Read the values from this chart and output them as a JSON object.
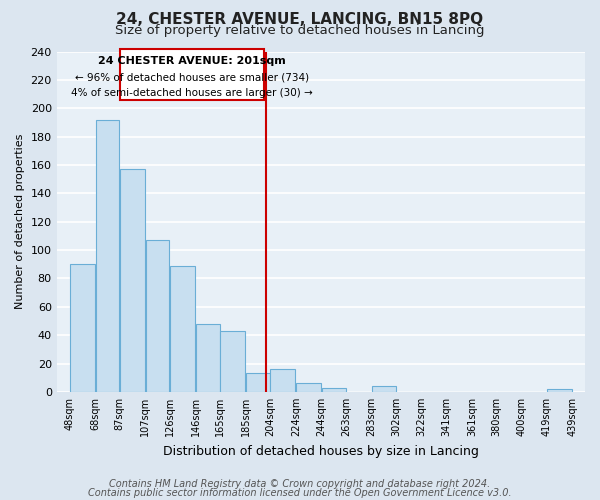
{
  "title": "24, CHESTER AVENUE, LANCING, BN15 8PQ",
  "subtitle": "Size of property relative to detached houses in Lancing",
  "xlabel": "Distribution of detached houses by size in Lancing",
  "ylabel": "Number of detached properties",
  "bar_left_edges": [
    48,
    68,
    87,
    107,
    126,
    146,
    165,
    185,
    204,
    224,
    244,
    263,
    283,
    302,
    322,
    341,
    361,
    380,
    400,
    419
  ],
  "bar_heights": [
    90,
    192,
    157,
    107,
    89,
    48,
    43,
    13,
    16,
    6,
    3,
    0,
    4,
    0,
    0,
    0,
    0,
    0,
    0,
    2
  ],
  "bar_widths": [
    20,
    19,
    20,
    19,
    20,
    19,
    20,
    19,
    20,
    20,
    19,
    20,
    19,
    20,
    19,
    20,
    19,
    20,
    19,
    20
  ],
  "bar_color": "#c8dff0",
  "bar_edgecolor": "#6aaed6",
  "vline_x": 201,
  "vline_color": "#cc0000",
  "ylim": [
    0,
    240
  ],
  "yticks": [
    0,
    20,
    40,
    60,
    80,
    100,
    120,
    140,
    160,
    180,
    200,
    220,
    240
  ],
  "xtick_labels": [
    "48sqm",
    "68sqm",
    "87sqm",
    "107sqm",
    "126sqm",
    "146sqm",
    "165sqm",
    "185sqm",
    "204sqm",
    "224sqm",
    "244sqm",
    "263sqm",
    "283sqm",
    "302sqm",
    "322sqm",
    "341sqm",
    "361sqm",
    "380sqm",
    "400sqm",
    "419sqm",
    "439sqm"
  ],
  "xtick_positions": [
    48,
    68,
    87,
    107,
    126,
    146,
    165,
    185,
    204,
    224,
    244,
    263,
    283,
    302,
    322,
    341,
    361,
    380,
    400,
    419,
    439
  ],
  "annotation_title": "24 CHESTER AVENUE: 201sqm",
  "annotation_line1": "← 96% of detached houses are smaller (734)",
  "annotation_line2": "4% of semi-detached houses are larger (30) →",
  "annotation_box_color": "#ffffff",
  "annotation_box_edgecolor": "#cc0000",
  "footer_line1": "Contains HM Land Registry data © Crown copyright and database right 2024.",
  "footer_line2": "Contains public sector information licensed under the Open Government Licence v3.0.",
  "bg_color": "#dce6f0",
  "plot_bg_color": "#e8f0f7",
  "grid_color": "#ffffff",
  "title_fontsize": 11,
  "subtitle_fontsize": 9.5,
  "footer_fontsize": 7,
  "xlim_min": 38,
  "xlim_max": 449
}
